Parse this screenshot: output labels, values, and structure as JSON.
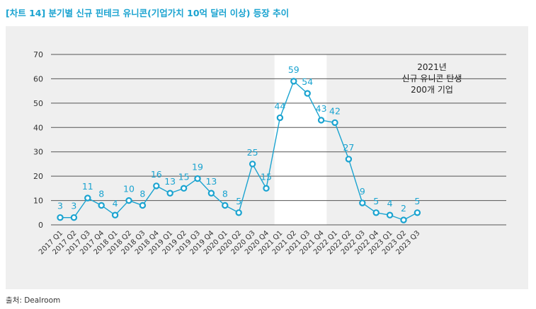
{
  "title": "[차트 14] 분기별 신규 핀테크 유니콘(기업가치 10억 달러 이상) 등장 추이",
  "source": "출처: Dealroom",
  "colors": {
    "accent": "#1aa3d0",
    "axis_text": "#333333",
    "grid": "#555555",
    "panel": "#efefef",
    "highlight": "#ffffff"
  },
  "chart_data": {
    "type": "line",
    "categories": [
      "2017 Q1",
      "2017 Q2",
      "2017 Q3",
      "2017 Q4",
      "2018 Q1",
      "2018 Q2",
      "2018 Q3",
      "2018 Q4",
      "2019 Q1",
      "2019 Q2",
      "2019 Q3",
      "2019 Q4",
      "2020 Q1",
      "2020 Q2",
      "2020 Q3",
      "2020 Q4",
      "2021 Q1",
      "2021 Q2",
      "2021 Q3",
      "2021 Q4",
      "2022 Q1",
      "2022 Q2",
      "2022 Q3",
      "2022 Q4",
      "2023 Q1",
      "2023 Q2",
      "2023 Q3"
    ],
    "values": [
      3,
      3,
      11,
      8,
      4,
      10,
      8,
      16,
      13,
      15,
      19,
      13,
      8,
      5,
      25,
      15,
      44,
      59,
      54,
      43,
      42,
      27,
      9,
      5,
      4,
      2,
      5
    ],
    "ylim": [
      0,
      70
    ],
    "yticks": [
      0,
      10,
      20,
      30,
      40,
      50,
      60,
      70
    ],
    "grid": true,
    "highlight_categories": [
      "2021 Q1",
      "2021 Q4"
    ],
    "annotation": [
      "2021년",
      "신규 유니콘 탄생",
      "200개 기업"
    ]
  }
}
